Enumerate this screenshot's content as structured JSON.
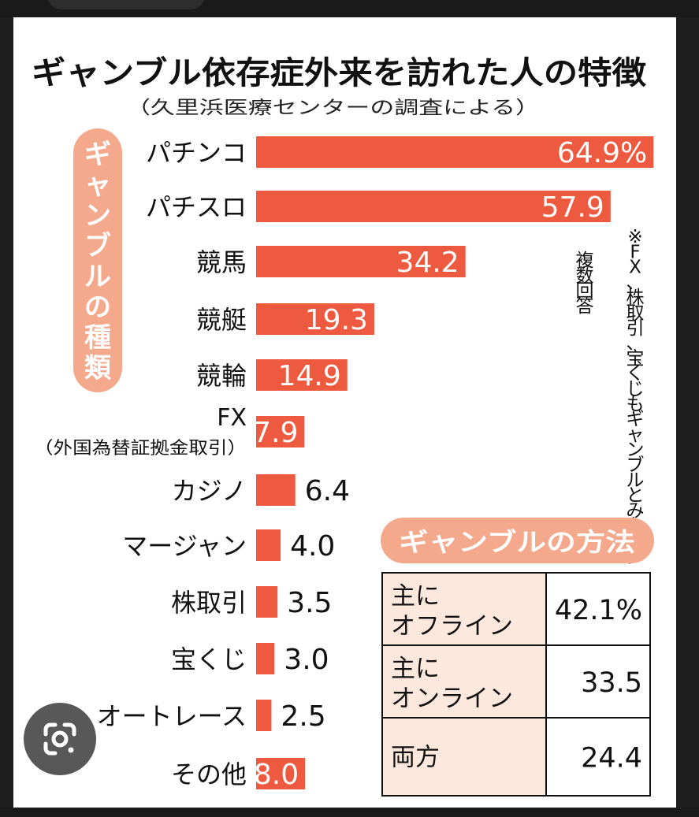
{
  "chart_data": {
    "type": "bar",
    "title": "ギャンブル依存症外来を訪れた人の特徴",
    "subtitle": "（久里浜医療センターの調査による）",
    "category_axis_label": "ギャンブルの種類",
    "note": "※FX、株取引、宝くじもギャンブルとみなす。複数回答",
    "unit_suffix": "%",
    "categories": [
      "パチンコ",
      "パチスロ",
      "競馬",
      "競艇",
      "競輪",
      "FX",
      "カジノ",
      "マージャン",
      "株取引",
      "宝くじ",
      "オートレース",
      "その他"
    ],
    "category_sublabels": [
      "",
      "",
      "",
      "",
      "",
      "（外国為替証拠金取引）",
      "",
      "",
      "",
      "",
      "",
      ""
    ],
    "values": [
      64.9,
      57.9,
      34.2,
      19.3,
      14.9,
      7.9,
      6.4,
      4.0,
      3.5,
      3.0,
      2.5,
      8.0
    ],
    "value_labels": [
      "64.9%",
      "57.9",
      "34.2",
      "19.3",
      "14.9",
      "7.9",
      "6.4",
      "4.0",
      "3.5",
      "3.0",
      "2.5",
      "8.0"
    ],
    "xlim": [
      0,
      65
    ]
  },
  "method_table": {
    "title": "ギャンブルの方法",
    "rows": [
      {
        "label_line1": "主に",
        "label_line2": "オフライン",
        "value": "42.1%"
      },
      {
        "label_line1": "主に",
        "label_line2": "オンライン",
        "value": "33.5"
      },
      {
        "label_line1": "両方",
        "label_line2": "",
        "value": "24.4"
      }
    ]
  },
  "colors": {
    "bar": "#ee5a3f",
    "pill": "#f4a98c",
    "table_label_bg": "#fde8dd",
    "text": "#111111"
  },
  "icons": {
    "lens_button": "google-lens-icon"
  }
}
